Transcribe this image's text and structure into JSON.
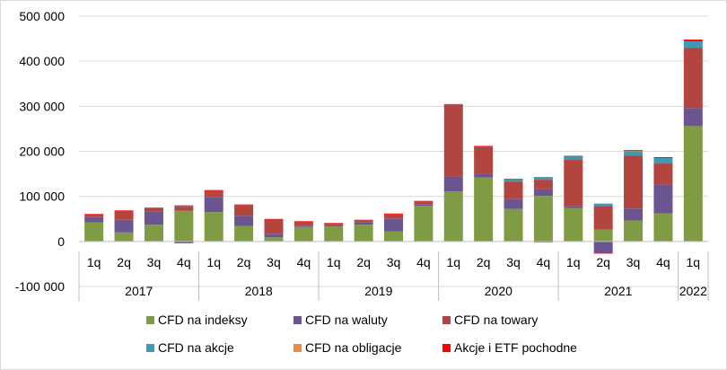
{
  "chart_data": {
    "type": "bar",
    "stacked": true,
    "title": "",
    "xlabel": "",
    "ylabel": "",
    "ylim": [
      -100000,
      500000
    ],
    "yticks": [
      -100000,
      0,
      100000,
      200000,
      300000,
      400000,
      500000
    ],
    "ytick_labels": [
      "-100 000",
      "0",
      "100 000",
      "200 000",
      "300 000",
      "400 000",
      "500 000"
    ],
    "grid": true,
    "legend_position": "bottom",
    "years": [
      {
        "label": "2017",
        "count": 4
      },
      {
        "label": "2018",
        "count": 4
      },
      {
        "label": "2019",
        "count": 4
      },
      {
        "label": "2020",
        "count": 4
      },
      {
        "label": "2021",
        "count": 4
      },
      {
        "label": "2022",
        "count": 1
      }
    ],
    "categories": [
      "1q",
      "2q",
      "3q",
      "4q",
      "1q",
      "2q",
      "3q",
      "4q",
      "1q",
      "2q",
      "3q",
      "4q",
      "1q",
      "2q",
      "3q",
      "4q",
      "1q",
      "2q",
      "3q",
      "4q",
      "1q"
    ],
    "series": [
      {
        "name": "CFD na indeksy",
        "color": "#7f9c45",
        "values": [
          42000,
          20000,
          37000,
          68000,
          65000,
          34000,
          9000,
          32000,
          33000,
          37000,
          22000,
          79000,
          111000,
          142000,
          72000,
          101000,
          74000,
          26000,
          46000,
          62000,
          256000
        ]
      },
      {
        "name": "CFD na waluty",
        "color": "#6b5591",
        "values": [
          12000,
          28000,
          30000,
          -4000,
          33000,
          23000,
          8000,
          2000,
          3000,
          6000,
          28000,
          3000,
          33000,
          9000,
          23000,
          15000,
          4000,
          -25000,
          27000,
          65000,
          40000
        ]
      },
      {
        "name": "CFD na towary",
        "color": "#b24540",
        "values": [
          6000,
          20000,
          7000,
          9000,
          14000,
          24000,
          32000,
          10000,
          4000,
          4000,
          10000,
          7000,
          159000,
          58000,
          38000,
          21000,
          103000,
          53000,
          117000,
          46000,
          134000
        ]
      },
      {
        "name": "CFD na akcje",
        "color": "#3e9ab4",
        "values": [
          0,
          0,
          0,
          1000,
          0,
          0,
          0,
          0,
          0,
          0,
          0,
          0,
          1000,
          1000,
          5000,
          6000,
          8000,
          5000,
          10000,
          12000,
          14000
        ]
      },
      {
        "name": "CFD na obligacje",
        "color": "#e88e3b",
        "values": [
          0,
          0,
          0,
          0,
          0,
          0,
          0,
          0,
          0,
          0,
          0,
          0,
          0,
          0,
          0,
          0,
          0,
          0,
          2000,
          0,
          0
        ]
      },
      {
        "name": "Akcje i ETF pochodne",
        "color": "#ff0000",
        "values": [
          1000,
          1000,
          1000,
          2000,
          2000,
          1000,
          1000,
          1000,
          1000,
          1000,
          2000,
          1000,
          1000,
          2000,
          1000,
          -2000,
          1000,
          -2000,
          1000,
          2000,
          4000
        ]
      }
    ]
  }
}
